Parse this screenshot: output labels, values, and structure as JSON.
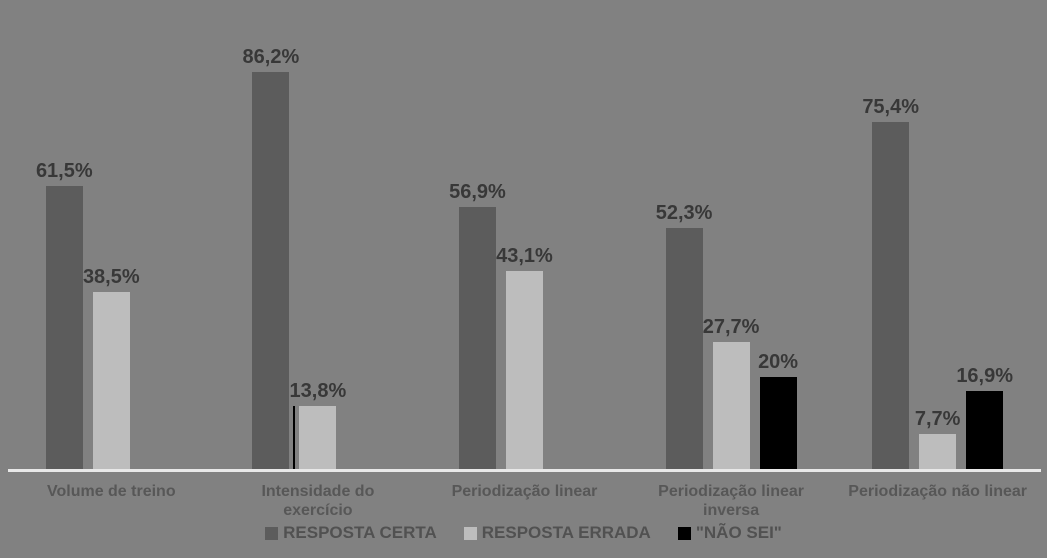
{
  "chart_data": {
    "type": "bar",
    "title": "",
    "xlabel": "",
    "ylabel": "",
    "ylim": [
      0,
      100
    ],
    "grid": false,
    "legend_position": "bottom",
    "value_label_format": "percent-comma-decimal",
    "categories": [
      "Volume de treino",
      "Intensidade do\nexercício",
      "Periodização linear",
      "Periodização linear\ninversa",
      "Periodização não linear"
    ],
    "series": [
      {
        "name": "RESPOSTA CERTA",
        "color": "#5c5c5c",
        "values": [
          61.5,
          86.2,
          56.9,
          52.3,
          75.4
        ],
        "labels": [
          "61,5%",
          "86,2%",
          "56,9%",
          "52,3%",
          "75,4%"
        ]
      },
      {
        "name": "RESPOSTA ERRADA",
        "color": "#bdbdbd",
        "values": [
          38.5,
          13.8,
          43.1,
          27.7,
          7.7
        ],
        "labels": [
          "38,5%",
          "13,8%",
          "43,1%",
          "27,7%",
          "7,7%"
        ],
        "edge_line_at": 1
      },
      {
        "name": "\"NÃO SEI\"",
        "color": "#000000",
        "values": [
          null,
          null,
          null,
          20,
          16.9
        ],
        "labels": [
          null,
          null,
          null,
          "20%",
          "16,9%"
        ]
      }
    ]
  },
  "colors": {
    "background": "#818181",
    "axis_line": "#e8e8e8",
    "value_label": "#383838",
    "category_label": "#575757",
    "legend_label": "#515151"
  }
}
